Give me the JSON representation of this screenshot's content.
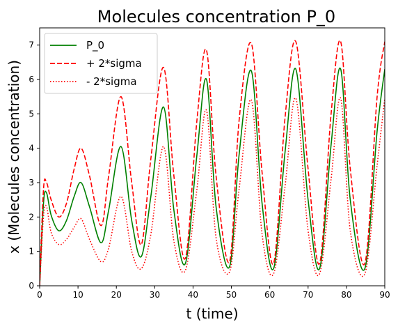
{
  "chart_data": {
    "type": "line",
    "title": "Molecules concentration P_0",
    "xlabel": "t (time)",
    "ylabel": "x (Molecules concentration)",
    "xlim": [
      0,
      90
    ],
    "ylim": [
      0,
      7.5
    ],
    "x_ticks": [
      "0",
      "10",
      "20",
      "30",
      "40",
      "50",
      "60",
      "70",
      "80",
      "90"
    ],
    "y_ticks": [
      "0",
      "1",
      "2",
      "3",
      "4",
      "5",
      "6",
      "7"
    ],
    "grid": false,
    "legend_position": "upper-left",
    "series": [
      {
        "name": "P_0",
        "color": "#008000",
        "style": "solid",
        "x": [
          0,
          1,
          1.8,
          3,
          5,
          7,
          9,
          10.8,
          13,
          16,
          18,
          21.2,
          24,
          26.5,
          29,
          32.3,
          35,
          38,
          41,
          43.5,
          46,
          49.5,
          52,
          55.2,
          58,
          61,
          64,
          66.8,
          70,
          73,
          76,
          78.5,
          81,
          84.8,
          88,
          90
        ],
        "y": [
          0,
          2.4,
          2.7,
          2.05,
          1.6,
          1.9,
          2.6,
          3.0,
          2.3,
          1.25,
          2.2,
          4.05,
          1.9,
          0.85,
          2.6,
          5.2,
          2.2,
          0.65,
          3.8,
          6.0,
          2.3,
          0.55,
          3.8,
          6.25,
          2.4,
          0.5,
          3.9,
          6.3,
          2.5,
          0.5,
          4.1,
          6.3,
          2.5,
          0.5,
          4.5,
          6.3
        ]
      },
      {
        "name": "+ 2*sigma",
        "color": "#ff0000",
        "style": "dashed",
        "x": [
          0,
          1,
          1.8,
          3,
          5,
          7,
          9,
          10.8,
          13,
          16,
          18,
          21.2,
          24,
          26.5,
          29,
          32.3,
          35,
          38,
          41,
          43.5,
          46,
          49.5,
          52,
          55.2,
          58,
          61,
          64,
          66.8,
          70,
          73,
          76,
          78.5,
          81,
          84.8,
          88,
          90
        ],
        "y": [
          0,
          2.8,
          3.0,
          2.5,
          2.0,
          2.4,
          3.4,
          4.0,
          3.2,
          1.75,
          3.2,
          5.5,
          3.0,
          1.2,
          3.7,
          6.35,
          3.2,
          0.8,
          4.8,
          6.85,
          3.2,
          0.7,
          4.8,
          7.05,
          3.3,
          0.65,
          4.9,
          7.1,
          3.4,
          0.65,
          5.0,
          7.1,
          3.4,
          0.65,
          5.5,
          7.1
        ]
      },
      {
        "name": "- 2*sigma",
        "color": "#ff0000",
        "style": "dotted",
        "x": [
          0,
          1,
          1.8,
          3,
          5,
          7,
          9,
          10.8,
          13,
          16,
          18,
          21.2,
          24,
          26.5,
          29,
          32.3,
          35,
          38,
          41,
          43.5,
          46,
          49.5,
          52,
          55.2,
          58,
          61,
          64,
          66.8,
          70,
          73,
          76,
          78.5,
          81,
          84.8,
          88,
          90
        ],
        "y": [
          0,
          2.0,
          2.3,
          1.55,
          1.2,
          1.35,
          1.7,
          1.95,
          1.35,
          0.7,
          1.1,
          2.6,
          1.0,
          0.5,
          1.5,
          4.05,
          1.3,
          0.45,
          2.8,
          5.1,
          1.4,
          0.4,
          2.8,
          5.4,
          1.5,
          0.35,
          2.9,
          5.45,
          1.6,
          0.35,
          3.1,
          5.45,
          1.6,
          0.35,
          3.5,
          5.45
        ]
      }
    ]
  }
}
